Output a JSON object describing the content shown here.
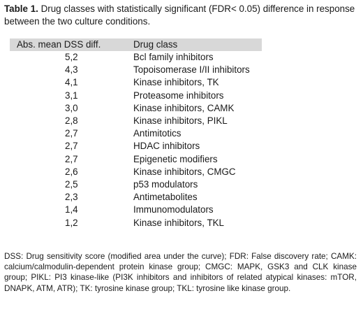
{
  "caption": {
    "label": "Table 1.",
    "text": " Drug classes with statistically significant (FDR< 0.05) difference in response between the two culture conditions."
  },
  "table": {
    "headers": [
      "Abs. mean DSS diff.",
      "Drug class"
    ],
    "rows": [
      {
        "value": "5,2",
        "drug_class": "Bcl family inhibitors"
      },
      {
        "value": "4,3",
        "drug_class": "Topoisomerase I/II inhibitors"
      },
      {
        "value": "4,1",
        "drug_class": "Kinase inhibitors, TK"
      },
      {
        "value": "3,1",
        "drug_class": "Proteasome inhibitors"
      },
      {
        "value": "3,0",
        "drug_class": "Kinase inhibitors, CAMK"
      },
      {
        "value": "2,8",
        "drug_class": "Kinase inhibitors, PIKL"
      },
      {
        "value": "2,7",
        "drug_class": "Antimitotics"
      },
      {
        "value": "2,7",
        "drug_class": "HDAC inhibitors"
      },
      {
        "value": "2,7",
        "drug_class": "Epigenetic modifiers"
      },
      {
        "value": "2,6",
        "drug_class": "Kinase inhibitors, CMGC"
      },
      {
        "value": "2,5",
        "drug_class": "p53 modulators"
      },
      {
        "value": "2,3",
        "drug_class": "Antimetabolites"
      },
      {
        "value": "1,4",
        "drug_class": "Immunomodulators"
      },
      {
        "value": "1,2",
        "drug_class": "Kinase inhibitors, TKL"
      }
    ]
  },
  "footnote": "DSS: Drug sensitivity score (modified area under the curve); FDR: False discovery rate; CAMK: calcium/calmodulin-dependent protein kinase group; CMGC: MAPK, GSK3 and CLK kinase group; PIKL: PI3 kinase-like (PI3K inhibitors and inhibitors of related atypical kinases: mTOR, DNAPK, ATM, ATR); TK: tyrosine kinase group; TKL: tyrosine like kinase group."
}
